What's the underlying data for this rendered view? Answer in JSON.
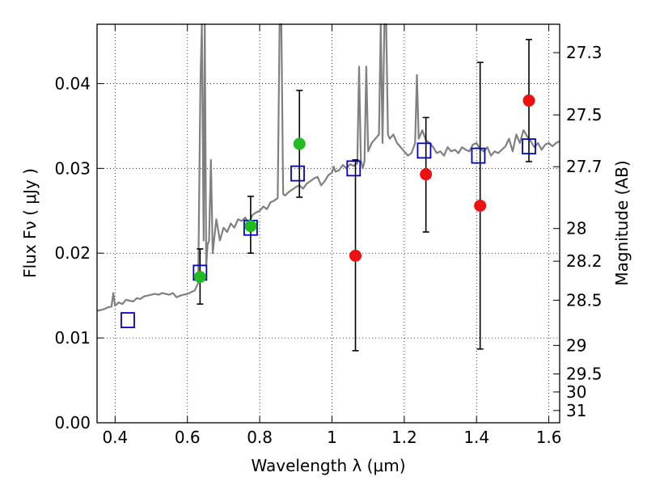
{
  "chart_data": {
    "type": "scatter",
    "xlabel": "Wavelength  λ (μm)",
    "ylabel": "Flux  Fν  ( μJy )",
    "ylabel_right": "Magnitude (AB)",
    "xlim": [
      0.35,
      1.63
    ],
    "ylim": [
      0.0,
      0.047
    ],
    "grid": true,
    "x_ticks": [
      {
        "value": 0.4,
        "label": "0.4"
      },
      {
        "value": 0.6,
        "label": "0.6"
      },
      {
        "value": 0.8,
        "label": "0.8"
      },
      {
        "value": 1.0,
        "label": "1"
      },
      {
        "value": 1.2,
        "label": "1.2"
      },
      {
        "value": 1.4,
        "label": "1.4"
      },
      {
        "value": 1.6,
        "label": "1.6"
      }
    ],
    "y_ticks": [
      {
        "value": 0.0,
        "label": "0.00"
      },
      {
        "value": 0.01,
        "label": "0.01"
      },
      {
        "value": 0.02,
        "label": "0.02"
      },
      {
        "value": 0.03,
        "label": "0.03"
      },
      {
        "value": 0.04,
        "label": "0.04"
      }
    ],
    "mag_ticks": [
      {
        "label": "27.3",
        "mag": 27.3
      },
      {
        "label": "27.5",
        "mag": 27.5
      },
      {
        "label": "27.7",
        "mag": 27.7
      },
      {
        "label": "28",
        "mag": 28.0
      },
      {
        "label": "28.2",
        "mag": 28.2
      },
      {
        "label": "28.5",
        "mag": 28.5
      },
      {
        "label": "29",
        "mag": 29.0
      },
      {
        "label": "29.5",
        "mag": 29.5
      },
      {
        "label": "30",
        "mag": 30.0
      },
      {
        "label": "31",
        "mag": 31.0
      }
    ],
    "colors": {
      "model": "#808080",
      "model_photometry": "#0000cc",
      "optical_detection": "#22bb22",
      "nir_detection": "#ee1111",
      "errorbar": "#000000"
    },
    "model_spectrum": {
      "x": [
        0.35,
        0.36,
        0.37,
        0.38,
        0.39,
        0.395,
        0.4,
        0.41,
        0.42,
        0.43,
        0.44,
        0.45,
        0.46,
        0.47,
        0.48,
        0.49,
        0.5,
        0.51,
        0.52,
        0.53,
        0.54,
        0.55,
        0.56,
        0.57,
        0.58,
        0.59,
        0.6,
        0.61,
        0.62,
        0.63,
        0.636,
        0.64,
        0.645,
        0.648,
        0.652,
        0.656,
        0.66,
        0.665,
        0.67,
        0.675,
        0.68,
        0.69,
        0.7,
        0.71,
        0.72,
        0.73,
        0.74,
        0.75,
        0.76,
        0.77,
        0.78,
        0.79,
        0.8,
        0.81,
        0.82,
        0.83,
        0.84,
        0.85,
        0.855,
        0.86,
        0.865,
        0.87,
        0.88,
        0.89,
        0.9,
        0.91,
        0.92,
        0.93,
        0.94,
        0.95,
        0.96,
        0.97,
        0.98,
        0.99,
        1.0,
        1.005,
        1.01,
        1.02,
        1.03,
        1.04,
        1.05,
        1.06,
        1.07,
        1.075,
        1.08,
        1.085,
        1.09,
        1.095,
        1.1,
        1.11,
        1.12,
        1.13,
        1.135,
        1.14,
        1.145,
        1.15,
        1.155,
        1.16,
        1.17,
        1.18,
        1.19,
        1.2,
        1.21,
        1.22,
        1.23,
        1.235,
        1.24,
        1.245,
        1.25,
        1.26,
        1.27,
        1.28,
        1.29,
        1.3,
        1.31,
        1.32,
        1.33,
        1.34,
        1.35,
        1.36,
        1.37,
        1.38,
        1.39,
        1.4,
        1.41,
        1.42,
        1.43,
        1.44,
        1.45,
        1.46,
        1.47,
        1.48,
        1.49,
        1.5,
        1.51,
        1.52,
        1.53,
        1.54,
        1.55,
        1.56,
        1.57,
        1.58,
        1.59,
        1.6,
        1.61,
        1.62,
        1.63
      ],
      "y": [
        0.0132,
        0.0133,
        0.0134,
        0.0136,
        0.0137,
        0.0153,
        0.0138,
        0.0142,
        0.014,
        0.0145,
        0.0144,
        0.0143,
        0.0147,
        0.0146,
        0.0149,
        0.015,
        0.0151,
        0.0152,
        0.0151,
        0.0153,
        0.0152,
        0.0151,
        0.0153,
        0.0148,
        0.015,
        0.0151,
        0.0152,
        0.0154,
        0.0156,
        0.0165,
        0.04,
        0.048,
        0.0215,
        0.048,
        0.0185,
        0.021,
        0.0215,
        0.031,
        0.02,
        0.022,
        0.024,
        0.0215,
        0.023,
        0.0225,
        0.0235,
        0.023,
        0.024,
        0.0238,
        0.0242,
        0.0235,
        0.0245,
        0.0248,
        0.025,
        0.0255,
        0.0252,
        0.026,
        0.0262,
        0.0265,
        0.048,
        0.048,
        0.027,
        0.0268,
        0.0272,
        0.0275,
        0.0278,
        0.028,
        0.0276,
        0.0282,
        0.0285,
        0.0288,
        0.029,
        0.028,
        0.0285,
        0.0292,
        0.0295,
        0.0302,
        0.0296,
        0.0298,
        0.0304,
        0.03,
        0.0305,
        0.0303,
        0.0306,
        0.042,
        0.031,
        0.03,
        0.0308,
        0.042,
        0.032,
        0.033,
        0.0335,
        0.034,
        0.048,
        0.033,
        0.048,
        0.048,
        0.034,
        0.0335,
        0.034,
        0.033,
        0.0325,
        0.032,
        0.0315,
        0.0318,
        0.033,
        0.041,
        0.0335,
        0.034,
        0.0345,
        0.0333,
        0.033,
        0.0325,
        0.0318,
        0.032,
        0.0315,
        0.0325,
        0.032,
        0.0322,
        0.0318,
        0.0325,
        0.0322,
        0.032,
        0.0328,
        0.033,
        0.0323,
        0.032,
        0.0325,
        0.0315,
        0.032,
        0.0318,
        0.0322,
        0.0326,
        0.0335,
        0.032,
        0.034,
        0.033,
        0.0345,
        0.0338,
        0.0332,
        0.0325,
        0.033,
        0.0322,
        0.0328,
        0.033,
        0.0326,
        0.033,
        0.0332
      ]
    },
    "model_photometry": {
      "x": [
        0.435,
        0.635,
        0.775,
        0.905,
        1.06,
        1.255,
        1.405,
        1.545
      ],
      "y": [
        0.0121,
        0.0177,
        0.023,
        0.0294,
        0.03,
        0.0321,
        0.0315,
        0.0326
      ]
    },
    "observed": [
      {
        "x": 0.635,
        "y": 0.0172,
        "lo": 0.014,
        "hi": 0.0205,
        "band": "optical"
      },
      {
        "x": 0.775,
        "y": 0.0232,
        "lo": 0.02,
        "hi": 0.0267,
        "band": "optical"
      },
      {
        "x": 0.91,
        "y": 0.0329,
        "lo": 0.0266,
        "hi": 0.0392,
        "band": "optical"
      },
      {
        "x": 1.065,
        "y": 0.0197,
        "lo": 0.0085,
        "hi": 0.031,
        "band": "nir"
      },
      {
        "x": 1.26,
        "y": 0.0293,
        "lo": 0.0225,
        "hi": 0.036,
        "band": "nir"
      },
      {
        "x": 1.41,
        "y": 0.0256,
        "lo": 0.0087,
        "hi": 0.0425,
        "band": "nir"
      },
      {
        "x": 1.545,
        "y": 0.038,
        "lo": 0.0308,
        "hi": 0.0452,
        "band": "nir"
      }
    ]
  }
}
